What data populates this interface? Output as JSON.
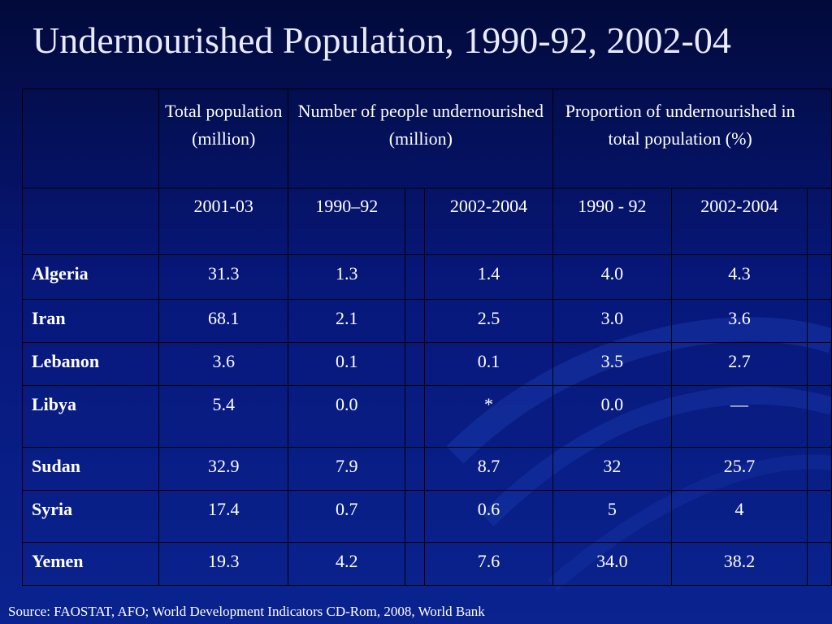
{
  "slide": {
    "title": "Undernourished Population, 1990-92, 2002-04",
    "source": "Source: FAOSTAT, AFO; World Development Indicators CD-Rom, 2008, World Bank"
  },
  "table": {
    "group_headers": {
      "total_population": "Total population (million)",
      "number_undernourished": "Number of people undernourished (million)",
      "proportion_undernourished": "Proportion of undernourished in total population (%)"
    },
    "sub_headers": {
      "total_2001_03": "2001-03",
      "number_1990_92": "1990–92",
      "number_2002_2004": "2002-2004",
      "proportion_1990_92": "1990 - 92",
      "proportion_2002_2004": "2002-2004"
    },
    "rows": [
      {
        "country": "Algeria",
        "total": "31.3",
        "num_1990": "1.3",
        "num_2002": "1.4",
        "prop_1990": "4.0",
        "prop_2002": "4.3"
      },
      {
        "country": "Iran",
        "total": "68.1",
        "num_1990": "2.1",
        "num_2002": "2.5",
        "prop_1990": "3.0",
        "prop_2002": "3.6"
      },
      {
        "country": "Lebanon",
        "total": "3.6",
        "num_1990": "0.1",
        "num_2002": "0.1",
        "prop_1990": "3.5",
        "prop_2002": "2.7"
      },
      {
        "country": "Libya",
        "total": "5.4",
        "num_1990": "0.0",
        "num_2002": "*",
        "prop_1990": "0.0",
        "prop_2002": "—"
      },
      {
        "country": "Sudan",
        "total": "32.9",
        "num_1990": "7.9",
        "num_2002": "8.7",
        "prop_1990": "32",
        "prop_2002": "25.7"
      },
      {
        "country": "Syria",
        "total": "17.4",
        "num_1990": "0.7",
        "num_2002": "0.6",
        "prop_1990": "5",
        "prop_2002": "4"
      },
      {
        "country": "Yemen",
        "total": "19.3",
        "num_1990": "4.2",
        "num_2002": "7.6",
        "prop_1990": "34.0",
        "prop_2002": "38.2"
      }
    ]
  }
}
